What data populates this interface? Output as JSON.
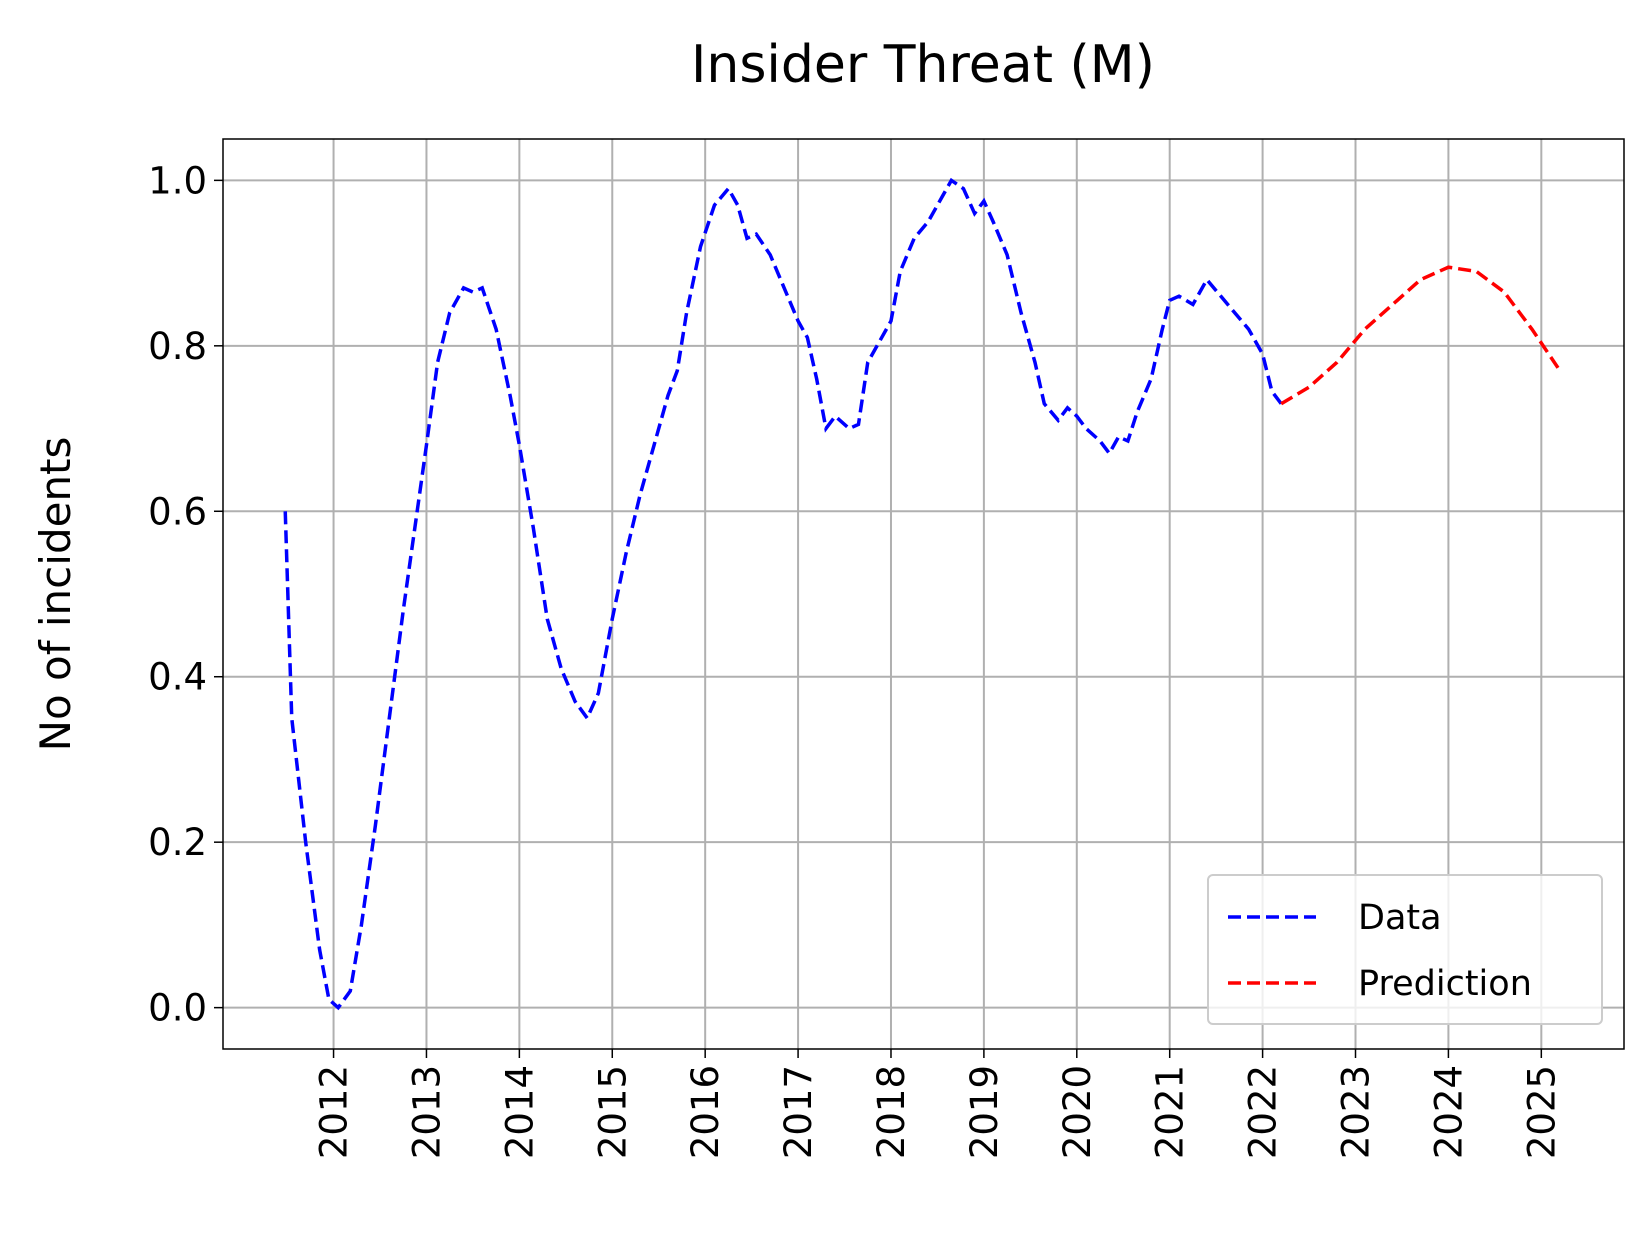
{
  "chart_data": {
    "type": "line",
    "title": "Insider Threat (M)",
    "y_label": "No of incidents",
    "series": [
      {
        "name": "Data",
        "color": "#0000ff",
        "x": [
          2011.48,
          2011.55,
          2011.7,
          2011.85,
          2011.95,
          2012.05,
          2012.18,
          2012.3,
          2012.45,
          2012.6,
          2012.75,
          2012.9,
          2013.0,
          2013.12,
          2013.25,
          2013.4,
          2013.5,
          2013.6,
          2013.75,
          2013.9,
          2014.0,
          2014.15,
          2014.3,
          2014.45,
          2014.6,
          2014.73,
          2014.85,
          2015.0,
          2015.15,
          2015.3,
          2015.45,
          2015.6,
          2015.7,
          2015.8,
          2015.95,
          2016.1,
          2016.25,
          2016.35,
          2016.45,
          2016.55,
          2016.7,
          2016.85,
          2017.0,
          2017.1,
          2017.2,
          2017.3,
          2017.4,
          2017.55,
          2017.65,
          2017.75,
          2017.9,
          2018.0,
          2018.1,
          2018.25,
          2018.4,
          2018.55,
          2018.65,
          2018.78,
          2018.9,
          2019.0,
          2019.1,
          2019.25,
          2019.4,
          2019.55,
          2019.65,
          2019.8,
          2019.9,
          2020.0,
          2020.1,
          2020.25,
          2020.35,
          2020.45,
          2020.55,
          2020.65,
          2020.8,
          2020.92,
          2021.0,
          2021.1,
          2021.25,
          2021.4,
          2021.55,
          2021.7,
          2021.85,
          2022.0,
          2022.1,
          2022.2
        ],
        "values": [
          0.6,
          0.35,
          0.2,
          0.07,
          0.01,
          0.0,
          0.02,
          0.1,
          0.22,
          0.35,
          0.48,
          0.6,
          0.68,
          0.78,
          0.84,
          0.87,
          0.865,
          0.87,
          0.82,
          0.74,
          0.68,
          0.58,
          0.47,
          0.41,
          0.37,
          0.35,
          0.38,
          0.47,
          0.55,
          0.62,
          0.68,
          0.74,
          0.77,
          0.84,
          0.92,
          0.97,
          0.99,
          0.97,
          0.93,
          0.935,
          0.91,
          0.87,
          0.83,
          0.81,
          0.76,
          0.7,
          0.715,
          0.7,
          0.705,
          0.78,
          0.81,
          0.83,
          0.89,
          0.93,
          0.95,
          0.98,
          1.0,
          0.99,
          0.96,
          0.975,
          0.95,
          0.91,
          0.84,
          0.78,
          0.73,
          0.71,
          0.725,
          0.715,
          0.7,
          0.685,
          0.67,
          0.69,
          0.685,
          0.72,
          0.76,
          0.82,
          0.855,
          0.86,
          0.85,
          0.88,
          0.86,
          0.84,
          0.82,
          0.79,
          0.745,
          0.73
        ]
      },
      {
        "name": "Prediction",
        "color": "#ff0000",
        "x": [
          2022.2,
          2022.5,
          2022.8,
          2023.1,
          2023.4,
          2023.7,
          2024.0,
          2024.3,
          2024.6,
          2024.9,
          2025.2
        ],
        "values": [
          0.73,
          0.75,
          0.78,
          0.82,
          0.85,
          0.88,
          0.895,
          0.89,
          0.865,
          0.82,
          0.77
        ]
      }
    ],
    "xlim": [
      2010.81,
      2025.89
    ],
    "xticks": [
      2012,
      2013,
      2014,
      2015,
      2016,
      2017,
      2018,
      2019,
      2020,
      2021,
      2022,
      2023,
      2024,
      2025
    ],
    "ylim": [
      -0.05,
      1.05
    ],
    "yticks": [
      {
        "value": 0,
        "label": "0.0"
      },
      0.2,
      0.4,
      0.6,
      0.8,
      {
        "value": 1,
        "label": "1.0"
      }
    ],
    "grid": true,
    "legend": "lower right"
  }
}
